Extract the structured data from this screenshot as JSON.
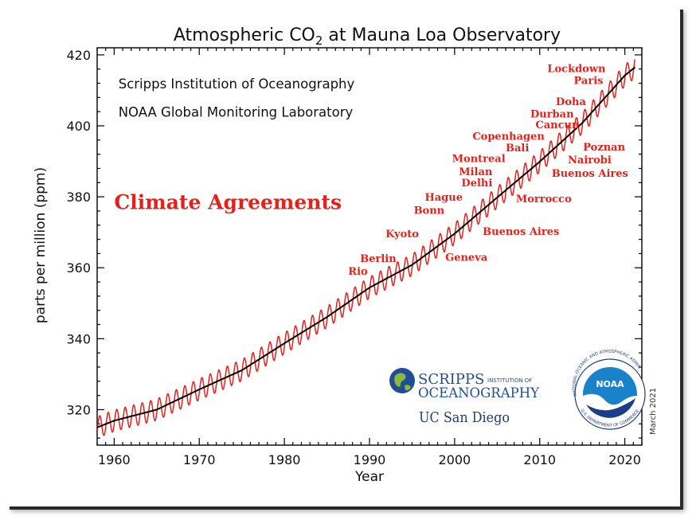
{
  "chart_data": {
    "type": "line",
    "title": "Atmospheric CO",
    "title_sub": "2",
    "title_suffix": " at Mauna Loa Observatory",
    "xlabel": "Year",
    "ylabel": "parts per million (ppm)",
    "xlim": [
      1958,
      2022
    ],
    "ylim": [
      310,
      422
    ],
    "xticks": [
      1960,
      1970,
      1980,
      1990,
      2000,
      2010,
      2020
    ],
    "yticks": [
      320,
      340,
      360,
      380,
      400,
      420
    ],
    "series": [
      {
        "color": "#e8201a",
        "seasonal_amplitude_ppm": 3.0,
        "values_note_x": [
          1958,
          1960,
          1965,
          1970,
          1975,
          1980,
          1985,
          1990,
          1995,
          2000,
          2005,
          2010,
          2015,
          2020,
          2021.2
        ],
        "values_note_y": [
          315.0,
          316.9,
          320.0,
          325.7,
          331.1,
          338.7,
          346.1,
          354.4,
          360.8,
          369.6,
          379.8,
          389.9,
          400.8,
          414.2,
          416.5
        ]
      },
      {
        "color": "#000000",
        "x": [
          1958,
          1960,
          1965,
          1970,
          1975,
          1980,
          1985,
          1990,
          1995,
          2000,
          2005,
          2010,
          2015,
          2020,
          2021.2
        ],
        "y": [
          315.0,
          316.9,
          320.0,
          325.7,
          331.1,
          338.7,
          346.1,
          354.4,
          360.8,
          369.6,
          379.8,
          389.9,
          400.8,
          414.2,
          416.5
        ]
      }
    ],
    "annotations": [
      {
        "text": "Scripps Institution of Oceanography",
        "x": 1960.5,
        "y": 410.5,
        "style": "credit"
      },
      {
        "text": "NOAA Global Monitoring Laboratory",
        "x": 1960.5,
        "y": 402.6,
        "style": "credit"
      },
      {
        "text": "Climate Agreements",
        "x": 1960.0,
        "y": 376.5,
        "style": "headline"
      },
      {
        "text": "Rio",
        "x": 1987.5,
        "y": 358.0,
        "style": "red"
      },
      {
        "text": "Berlin",
        "x": 1988.9,
        "y": 361.6,
        "style": "red"
      },
      {
        "text": "Kyoto",
        "x": 1991.9,
        "y": 368.6,
        "style": "red"
      },
      {
        "text": "Bonn",
        "x": 1995.2,
        "y": 375.2,
        "style": "red"
      },
      {
        "text": "Hague",
        "x": 1996.5,
        "y": 378.9,
        "style": "red"
      },
      {
        "text": "Delhi",
        "x": 2000.8,
        "y": 382.9,
        "style": "red"
      },
      {
        "text": "Milan",
        "x": 2000.5,
        "y": 386.1,
        "style": "red"
      },
      {
        "text": "Montreal",
        "x": 1999.7,
        "y": 389.8,
        "style": "red"
      },
      {
        "text": "Bali",
        "x": 2006.0,
        "y": 392.8,
        "style": "red"
      },
      {
        "text": "Copenhagen",
        "x": 2002.1,
        "y": 396.1,
        "style": "red"
      },
      {
        "text": "Cancun",
        "x": 2009.5,
        "y": 399.3,
        "style": "red"
      },
      {
        "text": "Durban",
        "x": 2008.9,
        "y": 402.4,
        "style": "red"
      },
      {
        "text": "Doha",
        "x": 2011.9,
        "y": 405.8,
        "style": "red"
      },
      {
        "text": "Paris",
        "x": 2014.0,
        "y": 411.8,
        "style": "red"
      },
      {
        "text": "Lockdown",
        "x": 2010.9,
        "y": 415.2,
        "style": "red"
      },
      {
        "text": "Poznan",
        "x": 2015.1,
        "y": 393.0,
        "style": "red"
      },
      {
        "text": "Nairobi",
        "x": 2013.3,
        "y": 389.4,
        "style": "red"
      },
      {
        "text": "Buenos Aires",
        "x": 2011.4,
        "y": 385.6,
        "style": "red"
      },
      {
        "text": "Morrocco",
        "x": 2007.2,
        "y": 378.5,
        "style": "red"
      },
      {
        "text": "Buenos Aires",
        "x": 2003.3,
        "y": 369.2,
        "style": "red"
      },
      {
        "text": "Geneva",
        "x": 1998.9,
        "y": 362.0,
        "style": "red"
      }
    ],
    "side_note": "March 2021",
    "grid": false
  },
  "logos": {
    "scripps_line1": "SCRIPPS",
    "scripps_line1b": "INSTITUTION OF",
    "scripps_line2": "OCEANOGRAPHY",
    "ucsd": "UC San Diego",
    "noaa": "NOAA",
    "noaa_ring": "NATIONAL OCEANIC AND ATMOSPHERIC ADMINISTRATION",
    "noaa_ring_bottom": "U.S. DEPARTMENT OF COMMERCE"
  }
}
